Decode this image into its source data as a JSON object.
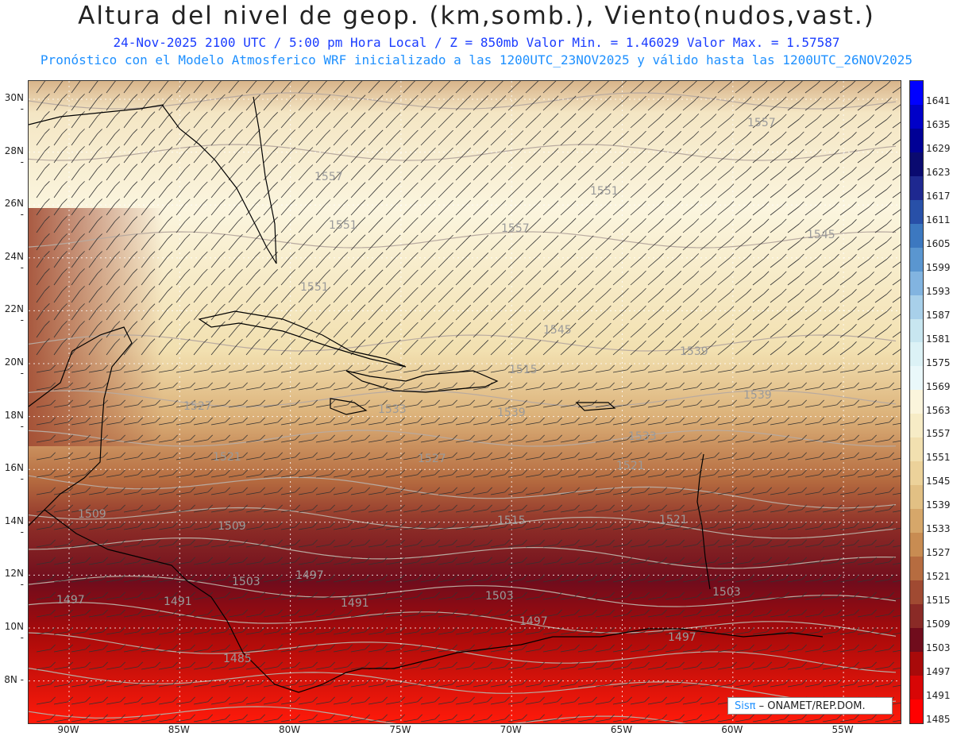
{
  "header": {
    "title": "Altura del nivel de geop. (km,somb.), Viento(nudos,vast.)",
    "line1": "24-Nov-2025  2100 UTC / 5:00 pm Hora Local / Z = 850mb    Valor Min. = 1.46029  Valor Max. = 1.57587",
    "line2": "Pronóstico con el Modelo Atmosferico WRF inicializado a las 1200UTC_23NOV2025 y válido hasta las  1200UTC_26NOV2025"
  },
  "axes": {
    "lat_labels": [
      "30N",
      "28N",
      "26N",
      "24N",
      "22N",
      "20N",
      "18N",
      "16N",
      "14N",
      "12N",
      "10N",
      "8N"
    ],
    "lon_labels": [
      "90W",
      "85W",
      "80W",
      "75W",
      "70W",
      "65W",
      "60W",
      "55W"
    ]
  },
  "colorbar": {
    "levels": [
      "1641",
      "1635",
      "1629",
      "1623",
      "1617",
      "1611",
      "1605",
      "1599",
      "1593",
      "1587",
      "1581",
      "1575",
      "1569",
      "1563",
      "1557",
      "1551",
      "1545",
      "1539",
      "1533",
      "1527",
      "1521",
      "1515",
      "1509",
      "1503",
      "1497",
      "1491",
      "1485"
    ],
    "colors": [
      "#0000ff",
      "#0000c8",
      "#000096",
      "#0a0a70",
      "#1e2890",
      "#2850a8",
      "#3c78c0",
      "#5a96d0",
      "#82b4e0",
      "#a8d0ea",
      "#c8e6f0",
      "#dcf2f6",
      "#eaf8fa",
      "#fbf5dc",
      "#f7ecc6",
      "#f2e0b0",
      "#ecd29a",
      "#e2c084",
      "#d6a76a",
      "#c88c52",
      "#b66c40",
      "#a04a32",
      "#8a2a26",
      "#700c1c",
      "#a80a0a",
      "#d80606",
      "#ff0000"
    ]
  },
  "contour_labels": [
    "1557",
    "1551",
    "1557",
    "1557",
    "1551",
    "1545",
    "1551",
    "1545",
    "1539",
    "1539",
    "1533",
    "1527",
    "1521",
    "1527",
    "1521",
    "1521",
    "1515",
    "1509",
    "1509",
    "1503",
    "1497",
    "1497",
    "1491",
    "1503",
    "1497",
    "1485",
    "1491",
    "1497",
    "1503",
    "1515",
    "1539",
    "1533"
  ],
  "badge": {
    "logo": "Sisπ",
    "text": " – ONAMET/REP.DOM."
  }
}
